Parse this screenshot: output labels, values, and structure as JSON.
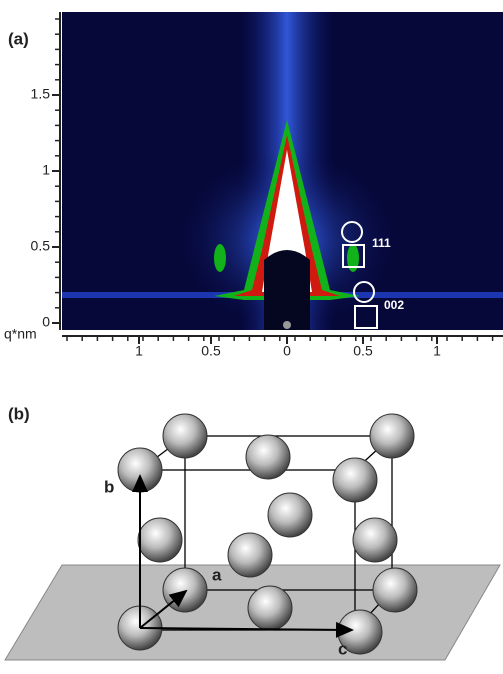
{
  "panel_a": {
    "label": "(a)",
    "y_ticks": [
      "0",
      "0.5",
      "1",
      "1.5"
    ],
    "x_label": "q*nm",
    "x_ticks": [
      "1",
      "0.5",
      "0",
      "0.5",
      "1"
    ],
    "annotations": [
      "111",
      "002"
    ]
  },
  "panel_b": {
    "label": "(b)",
    "axis_labels": [
      "a",
      "b",
      "c"
    ]
  }
}
